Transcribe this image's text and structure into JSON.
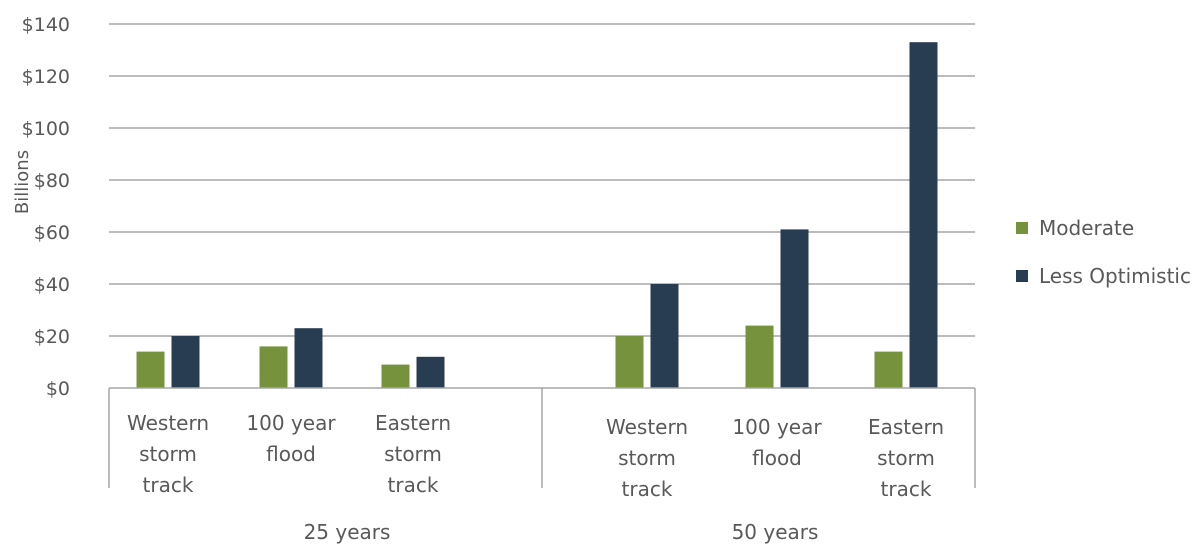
{
  "chart_data": {
    "type": "bar",
    "ylabel": "Billions",
    "ylim": [
      0,
      140
    ],
    "yticks": [
      "$0",
      "$20",
      "$40",
      "$60",
      "$80",
      "$100",
      "$120",
      "$140"
    ],
    "grid": true,
    "legend_position": "right",
    "groups": [
      {
        "label": "25 years",
        "categories": [
          [
            "Western",
            "storm",
            "track"
          ],
          [
            "100 year",
            "flood"
          ],
          [
            "Eastern",
            "storm",
            "track"
          ]
        ]
      },
      {
        "label": "50 years",
        "categories": [
          [
            "Western",
            "storm",
            "track"
          ],
          [
            "100 year",
            "flood"
          ],
          [
            "Eastern",
            "storm",
            "track"
          ]
        ]
      }
    ],
    "series": [
      {
        "name": "Moderate",
        "color": "#76923c",
        "values": [
          14,
          16,
          9,
          20,
          24,
          14
        ]
      },
      {
        "name": "Less Optimistic",
        "color": "#283d52",
        "values": [
          20,
          23,
          12,
          40,
          61,
          133
        ]
      }
    ]
  }
}
